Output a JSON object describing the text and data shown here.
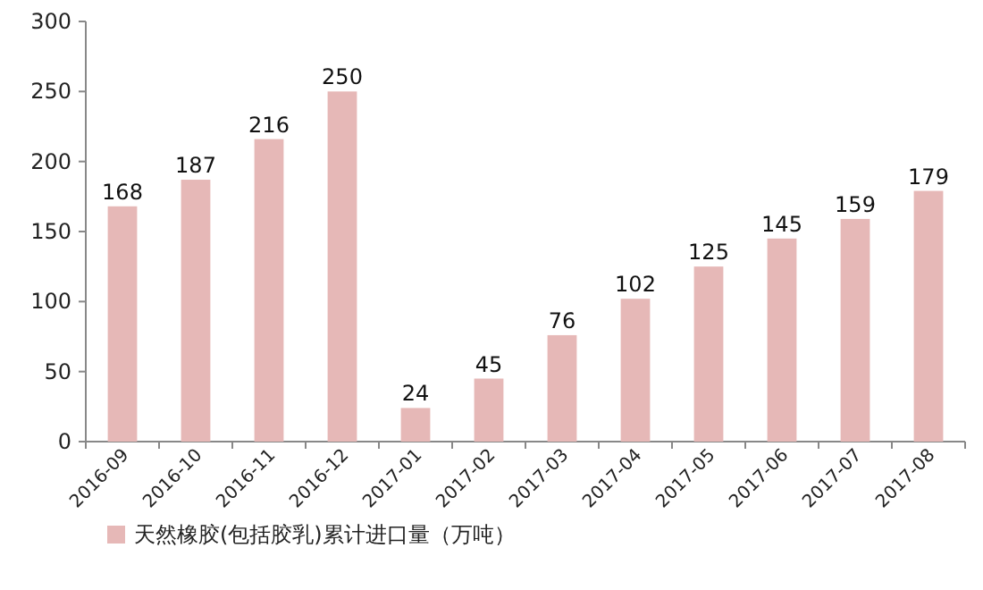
{
  "chart_data": {
    "type": "bar",
    "categories": [
      "2016-09",
      "2016-10",
      "2016-11",
      "2016-12",
      "2017-01",
      "2017-02",
      "2017-03",
      "2017-04",
      "2017-05",
      "2017-06",
      "2017-07",
      "2017-08"
    ],
    "series": [
      {
        "name": "天然橡胶(包括胶乳)累计进口量（万吨）",
        "color": "#e6b8b7",
        "values": [
          168,
          187,
          216,
          250,
          24,
          45,
          76,
          102,
          125,
          145,
          159,
          179
        ]
      }
    ],
    "ylim": [
      0,
      300
    ],
    "yticks": [
      0,
      50,
      100,
      150,
      200,
      250,
      300
    ],
    "data_labels": true,
    "legend": "bottom left"
  }
}
